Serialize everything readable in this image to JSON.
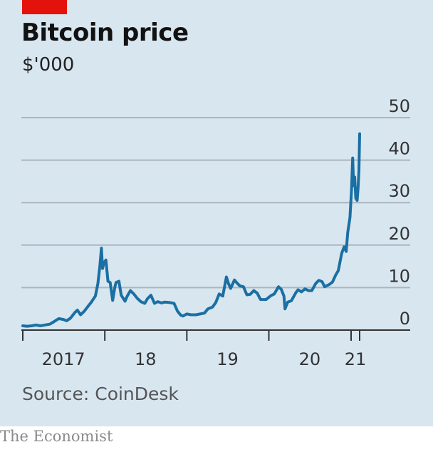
{
  "chart_data": {
    "type": "line",
    "title": "Bitcoin price",
    "subtitle": "$'000",
    "source": "Source: CoinDesk",
    "ylim": [
      0,
      50
    ],
    "yticks": [
      0,
      10,
      20,
      30,
      40,
      50
    ],
    "ytick_labels": [
      "0",
      "10",
      "20",
      "30",
      "40",
      "50"
    ],
    "xlim": [
      "2017-01-01",
      "2021-09-01"
    ],
    "xticks": [
      "2017-01-01",
      "2018-01-01",
      "2019-01-01",
      "2020-01-01",
      "2021-01-01",
      "2021-02-08"
    ],
    "xtick_labels": [
      {
        "label": "2017",
        "center": "2017-07-01"
      },
      {
        "label": "18",
        "center": "2018-07-01"
      },
      {
        "label": "19",
        "center": "2019-07-01"
      },
      {
        "label": "20",
        "center": "2020-07-01"
      },
      {
        "label": "21",
        "center": "2021-01-20"
      }
    ],
    "grid": true,
    "line_color": "#1a6fa3",
    "series": [
      {
        "x": [
          "2017-01-01",
          "2017-01-20",
          "2017-02-10",
          "2017-03-01",
          "2017-03-20",
          "2017-04-10",
          "2017-05-01",
          "2017-05-20",
          "2017-06-10",
          "2017-07-01",
          "2017-07-15",
          "2017-08-01",
          "2017-08-20",
          "2017-09-01",
          "2017-09-15",
          "2017-10-01",
          "2017-10-20",
          "2017-11-01",
          "2017-11-20",
          "2017-12-01",
          "2017-12-10",
          "2017-12-17",
          "2017-12-22",
          "2017-12-28",
          "2018-01-06",
          "2018-01-15",
          "2018-01-25",
          "2018-02-05",
          "2018-02-15",
          "2018-02-20",
          "2018-03-05",
          "2018-03-15",
          "2018-04-01",
          "2018-04-10",
          "2018-04-25",
          "2018-05-10",
          "2018-05-25",
          "2018-06-10",
          "2018-06-28",
          "2018-07-10",
          "2018-07-25",
          "2018-08-10",
          "2018-08-25",
          "2018-09-10",
          "2018-09-25",
          "2018-10-15",
          "2018-11-05",
          "2018-11-20",
          "2018-12-05",
          "2018-12-15",
          "2019-01-01",
          "2019-01-20",
          "2019-02-10",
          "2019-03-01",
          "2019-03-20",
          "2019-04-05",
          "2019-04-25",
          "2019-05-10",
          "2019-05-25",
          "2019-06-10",
          "2019-06-26",
          "2019-07-05",
          "2019-07-15",
          "2019-08-01",
          "2019-08-10",
          "2019-08-25",
          "2019-09-10",
          "2019-09-25",
          "2019-10-10",
          "2019-10-26",
          "2019-11-10",
          "2019-11-25",
          "2019-12-10",
          "2019-12-20",
          "2020-01-10",
          "2020-01-25",
          "2020-02-13",
          "2020-02-25",
          "2020-03-08",
          "2020-03-13",
          "2020-03-25",
          "2020-04-10",
          "2020-04-30",
          "2020-05-10",
          "2020-05-25",
          "2020-06-10",
          "2020-06-25",
          "2020-07-10",
          "2020-07-28",
          "2020-08-10",
          "2020-08-25",
          "2020-09-05",
          "2020-09-25",
          "2020-10-10",
          "2020-10-25",
          "2020-11-05",
          "2020-11-20",
          "2020-12-01",
          "2020-12-10",
          "2020-12-17",
          "2020-12-27",
          "2021-01-03",
          "2021-01-08",
          "2021-01-12",
          "2021-01-17",
          "2021-01-22",
          "2021-01-28",
          "2021-02-01",
          "2021-02-05",
          "2021-02-08"
        ],
        "values": [
          1.0,
          0.9,
          1.0,
          1.2,
          1.0,
          1.2,
          1.4,
          2.0,
          2.7,
          2.5,
          2.2,
          2.8,
          4.1,
          4.7,
          3.6,
          4.4,
          5.7,
          6.5,
          8.0,
          10.9,
          15.0,
          19.3,
          14.5,
          15.8,
          16.5,
          11.5,
          11.2,
          7.0,
          10.2,
          11.2,
          11.5,
          8.2,
          6.8,
          7.9,
          9.3,
          8.5,
          7.5,
          6.7,
          6.3,
          7.4,
          8.2,
          6.3,
          6.7,
          6.4,
          6.6,
          6.5,
          6.3,
          4.5,
          3.5,
          3.3,
          3.8,
          3.6,
          3.6,
          3.8,
          4.0,
          5.0,
          5.4,
          6.5,
          8.5,
          8.0,
          12.5,
          11.0,
          9.8,
          11.8,
          11.2,
          10.4,
          10.2,
          8.3,
          8.4,
          9.3,
          8.7,
          7.2,
          7.2,
          7.2,
          8.1,
          8.5,
          10.2,
          9.6,
          8.0,
          5.0,
          6.6,
          6.9,
          8.8,
          9.5,
          9.0,
          9.7,
          9.3,
          9.3,
          11.0,
          11.7,
          11.4,
          10.2,
          10.7,
          11.3,
          13.0,
          14.0,
          18.0,
          19.6,
          18.5,
          23.0,
          26.5,
          33.0,
          40.5,
          34.0,
          36.0,
          31.0,
          30.5,
          33.5,
          37.5,
          46.2
        ]
      }
    ]
  },
  "footer": {
    "publisher": "The Economist"
  }
}
